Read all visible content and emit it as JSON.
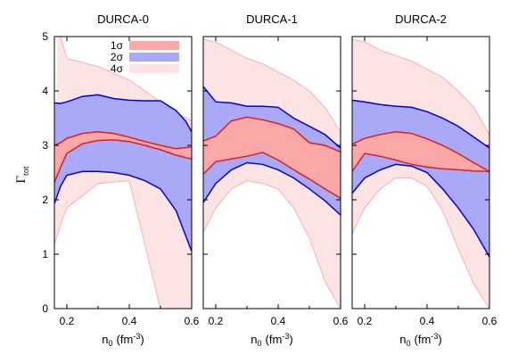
{
  "ylabel": "Γ",
  "ylabel_sub": "tot",
  "xlabel": "n",
  "xlabel_sub": "0",
  "xlabel_unit": "(fm",
  "xlabel_unit_sup": "-3",
  "xlabel_unit_close": ")",
  "legend": {
    "items": [
      {
        "label": "1σ",
        "color": "#fba8a8"
      },
      {
        "label": "2σ",
        "color": "#a9a9f8"
      },
      {
        "label": "4σ",
        "color": "#fde4e4"
      }
    ]
  },
  "colors": {
    "band_1sigma_fill": "#fba8a8",
    "band_1sigma_edge": "#e01e1e",
    "band_2sigma_fill": "#a9a9f8",
    "band_2sigma_edge": "#0000dd",
    "band_4sigma_fill": "#fde4e4",
    "band_4sigma_edge": "#f8b0b0"
  },
  "chart_data": [
    {
      "type": "area",
      "title": "DURCA-0",
      "xlim": [
        0.16,
        0.6
      ],
      "ylim": [
        0,
        5
      ],
      "xticks": [
        0.2,
        0.4,
        0.6
      ],
      "xtick_labels": [
        "0.2",
        "0.4",
        "0.6"
      ],
      "yticks": [
        0,
        1,
        2,
        3,
        4,
        5
      ],
      "ytick_labels": [
        "0",
        "1",
        "2",
        "3",
        "4",
        "5"
      ],
      "bands": [
        {
          "name": "4σ",
          "x": [
            0.16,
            0.18,
            0.2,
            0.3,
            0.4,
            0.5,
            0.55,
            0.6
          ],
          "lower": [
            1.18,
            1.55,
            1.85,
            2.3,
            2.35,
            0.0,
            0.0,
            0.0
          ],
          "upper_x": [
            0.17,
            0.18,
            0.2,
            0.3,
            0.4,
            0.5,
            0.55,
            0.6
          ],
          "upper": [
            5.0,
            5.0,
            4.6,
            4.45,
            4.2,
            3.8,
            3.6,
            3.45
          ]
        },
        {
          "name": "2σ",
          "x": [
            0.16,
            0.18,
            0.2,
            0.25,
            0.3,
            0.35,
            0.4,
            0.45,
            0.5,
            0.55,
            0.58,
            0.6
          ],
          "lower": [
            1.93,
            2.25,
            2.45,
            2.52,
            2.52,
            2.5,
            2.45,
            2.35,
            2.2,
            1.8,
            1.35,
            1.05
          ],
          "upper": [
            3.78,
            3.77,
            3.8,
            3.9,
            3.93,
            3.86,
            3.83,
            3.82,
            3.82,
            3.64,
            3.45,
            3.25
          ]
        },
        {
          "name": "1σ",
          "x": [
            0.16,
            0.18,
            0.2,
            0.25,
            0.3,
            0.35,
            0.4,
            0.45,
            0.5,
            0.55,
            0.6
          ],
          "lower": [
            2.32,
            2.6,
            2.85,
            3.03,
            3.09,
            3.1,
            3.07,
            3.0,
            2.92,
            2.82,
            2.75
          ],
          "upper": [
            3.0,
            3.05,
            3.13,
            3.22,
            3.25,
            3.22,
            3.15,
            3.07,
            3.0,
            2.94,
            2.97
          ]
        }
      ]
    },
    {
      "type": "area",
      "title": "DURCA-1",
      "xlim": [
        0.16,
        0.6
      ],
      "ylim": [
        0,
        5
      ],
      "xticks": [
        0.2,
        0.4,
        0.6
      ],
      "xtick_labels": [
        "0.2",
        "0.4",
        "0.6"
      ],
      "bands": [
        {
          "name": "4σ",
          "x": [
            0.16,
            0.2,
            0.25,
            0.3,
            0.35,
            0.4,
            0.45,
            0.5,
            0.55,
            0.6
          ],
          "lower": [
            1.4,
            1.85,
            2.2,
            2.35,
            2.3,
            2.2,
            1.85,
            1.3,
            0.5,
            0.0
          ],
          "upper": [
            4.95,
            4.9,
            4.75,
            4.6,
            4.5,
            4.35,
            4.2,
            4.0,
            3.7,
            3.25
          ]
        },
        {
          "name": "2σ",
          "x": [
            0.16,
            0.2,
            0.25,
            0.3,
            0.35,
            0.4,
            0.45,
            0.5,
            0.55,
            0.6
          ],
          "lower": [
            1.95,
            2.3,
            2.55,
            2.68,
            2.65,
            2.55,
            2.4,
            2.2,
            1.98,
            1.72
          ],
          "upper": [
            4.08,
            3.8,
            3.78,
            3.72,
            3.72,
            3.7,
            3.5,
            3.35,
            3.2,
            2.95
          ]
        },
        {
          "name": "1σ",
          "x": [
            0.16,
            0.2,
            0.25,
            0.3,
            0.35,
            0.4,
            0.45,
            0.5,
            0.55,
            0.6
          ],
          "lower": [
            2.47,
            2.7,
            2.75,
            2.8,
            2.87,
            2.73,
            2.55,
            2.38,
            2.2,
            2.03
          ],
          "upper": [
            3.08,
            3.17,
            3.45,
            3.52,
            3.47,
            3.4,
            3.3,
            3.05,
            3.0,
            2.88
          ]
        }
      ]
    },
    {
      "type": "area",
      "title": "DURCA-2",
      "xlim": [
        0.16,
        0.6
      ],
      "ylim": [
        0,
        5
      ],
      "xticks": [
        0.2,
        0.4,
        0.6
      ],
      "xtick_labels": [
        "0.2",
        "0.4",
        "0.6"
      ],
      "bands": [
        {
          "name": "4σ",
          "x": [
            0.16,
            0.2,
            0.25,
            0.3,
            0.35,
            0.4,
            0.45,
            0.5,
            0.55,
            0.6
          ],
          "lower": [
            1.38,
            1.85,
            2.2,
            2.4,
            2.4,
            2.25,
            1.8,
            1.1,
            0.45,
            0.0
          ],
          "upper": [
            4.95,
            4.9,
            4.75,
            4.65,
            4.55,
            4.4,
            4.25,
            4.0,
            3.7,
            3.2
          ]
        },
        {
          "name": "2σ",
          "x": [
            0.16,
            0.2,
            0.25,
            0.3,
            0.35,
            0.4,
            0.45,
            0.5,
            0.55,
            0.6
          ],
          "lower": [
            2.12,
            2.4,
            2.55,
            2.65,
            2.62,
            2.5,
            2.2,
            1.85,
            1.45,
            0.95
          ],
          "upper": [
            3.83,
            3.8,
            3.75,
            3.72,
            3.7,
            3.62,
            3.5,
            3.35,
            3.15,
            2.95
          ]
        },
        {
          "name": "1σ",
          "x": [
            0.16,
            0.2,
            0.25,
            0.3,
            0.35,
            0.4,
            0.45,
            0.5,
            0.55,
            0.6
          ],
          "lower": [
            2.52,
            2.85,
            2.8,
            2.73,
            2.65,
            2.6,
            2.57,
            2.55,
            2.53,
            2.52
          ],
          "upper": [
            3.02,
            3.13,
            3.2,
            3.25,
            3.22,
            3.12,
            3.0,
            2.85,
            2.68,
            2.52
          ]
        }
      ]
    }
  ]
}
